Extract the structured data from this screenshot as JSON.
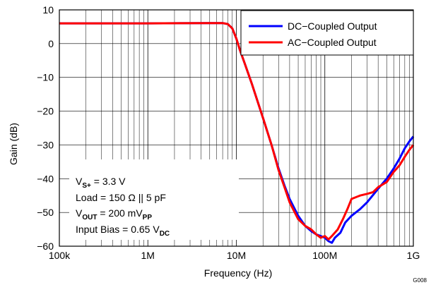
{
  "chart_data": {
    "type": "line",
    "title": "",
    "xlabel": "Frequency (Hz)",
    "ylabel": "Gain (dB)",
    "x_scale": "log",
    "xlim": [
      100000,
      1000000000
    ],
    "ylim": [
      -60,
      10
    ],
    "grid": true,
    "legend_position": "top-right",
    "x_ticks": [
      {
        "value": 100000,
        "label": "100k"
      },
      {
        "value": 1000000,
        "label": "1M"
      },
      {
        "value": 10000000,
        "label": "10M"
      },
      {
        "value": 100000000,
        "label": "100M"
      },
      {
        "value": 1000000000,
        "label": "1G"
      }
    ],
    "y_ticks": [
      {
        "value": 10,
        "label": "10"
      },
      {
        "value": 0,
        "label": "0"
      },
      {
        "value": -10,
        "label": "−10"
      },
      {
        "value": -20,
        "label": "−20"
      },
      {
        "value": -30,
        "label": "−30"
      },
      {
        "value": -40,
        "label": "−40"
      },
      {
        "value": -50,
        "label": "−50"
      },
      {
        "value": -60,
        "label": "−60"
      }
    ],
    "series": [
      {
        "name": "DC−Coupled Output",
        "color": "#0000ff",
        "points": [
          [
            100000,
            6
          ],
          [
            1000000,
            6
          ],
          [
            5000000,
            6.1
          ],
          [
            7000000,
            6.1
          ],
          [
            8000000,
            5.8
          ],
          [
            9000000,
            4.5
          ],
          [
            10000000,
            1.5
          ],
          [
            11000000,
            -2
          ],
          [
            12500000,
            -6
          ],
          [
            15000000,
            -12
          ],
          [
            20000000,
            -22
          ],
          [
            25000000,
            -30
          ],
          [
            30000000,
            -37
          ],
          [
            35000000,
            -42
          ],
          [
            40000000,
            -46
          ],
          [
            50000000,
            -51
          ],
          [
            60000000,
            -54
          ],
          [
            70000000,
            -55.5
          ],
          [
            80000000,
            -56.5
          ],
          [
            90000000,
            -57
          ],
          [
            100000000,
            -57.5
          ],
          [
            110000000,
            -58.5
          ],
          [
            120000000,
            -59
          ],
          [
            130000000,
            -57.5
          ],
          [
            150000000,
            -56
          ],
          [
            170000000,
            -53
          ],
          [
            200000000,
            -51
          ],
          [
            250000000,
            -49
          ],
          [
            300000000,
            -47
          ],
          [
            400000000,
            -43
          ],
          [
            500000000,
            -40
          ],
          [
            600000000,
            -37
          ],
          [
            700000000,
            -34
          ],
          [
            800000000,
            -31
          ],
          [
            900000000,
            -29
          ],
          [
            1000000000,
            -27.5
          ]
        ]
      },
      {
        "name": "AC−Coupled Output",
        "color": "#ff0000",
        "points": [
          [
            100000,
            6
          ],
          [
            1000000,
            6
          ],
          [
            5000000,
            6.1
          ],
          [
            7000000,
            6.1
          ],
          [
            8000000,
            5.8
          ],
          [
            9000000,
            4.5
          ],
          [
            10000000,
            1.5
          ],
          [
            11000000,
            -2
          ],
          [
            12500000,
            -6
          ],
          [
            15000000,
            -12
          ],
          [
            20000000,
            -22
          ],
          [
            25000000,
            -30
          ],
          [
            30000000,
            -37.5
          ],
          [
            35000000,
            -42.5
          ],
          [
            40000000,
            -47
          ],
          [
            50000000,
            -52
          ],
          [
            60000000,
            -54
          ],
          [
            70000000,
            -55
          ],
          [
            80000000,
            -56.5
          ],
          [
            90000000,
            -57.5
          ],
          [
            100000000,
            -57
          ],
          [
            110000000,
            -58
          ],
          [
            120000000,
            -57
          ],
          [
            140000000,
            -55
          ],
          [
            160000000,
            -52
          ],
          [
            180000000,
            -49
          ],
          [
            200000000,
            -46
          ],
          [
            250000000,
            -45
          ],
          [
            300000000,
            -44.5
          ],
          [
            350000000,
            -44
          ],
          [
            400000000,
            -42.5
          ],
          [
            500000000,
            -41
          ],
          [
            600000000,
            -38
          ],
          [
            700000000,
            -36
          ],
          [
            800000000,
            -33.5
          ],
          [
            900000000,
            -31.5
          ],
          [
            1000000000,
            -30
          ]
        ]
      }
    ],
    "annotations": {
      "vs_main": "V",
      "vs_sub": "S+",
      "vs_rest": " = 3.3 V",
      "load": "Load = 150 Ω || 5 pF",
      "vout_main": "V",
      "vout_sub": "OUT",
      "vout_mid": " = 200 mV",
      "vout_sub2": "PP",
      "bias_main": "Input Bias = 0.65 V",
      "bias_sub": "DC"
    },
    "figure_id": "G008"
  }
}
